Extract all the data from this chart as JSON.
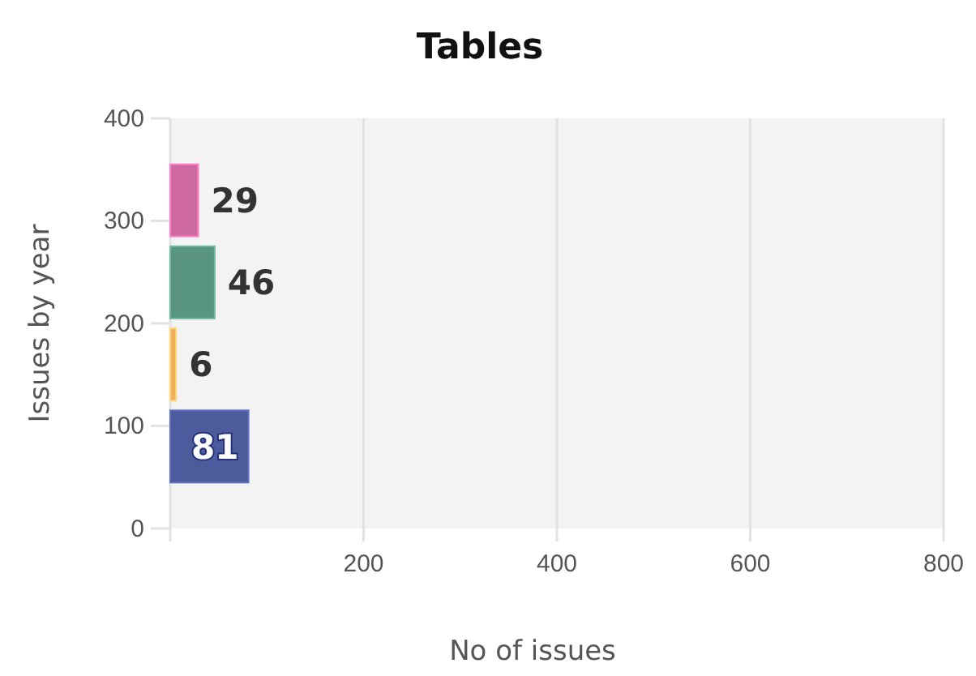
{
  "chart_data": {
    "type": "bar",
    "orientation": "horizontal",
    "title": "Tables",
    "xlabel": "No of issues",
    "ylabel": "Issues by year",
    "x": [
      80,
      160,
      240,
      320
    ],
    "values": [
      81,
      6,
      46,
      29
    ],
    "colors": [
      "#4c5b9b",
      "#f2ad5c",
      "#5a9580",
      "#cf69a2"
    ],
    "xlim": [
      0,
      800
    ],
    "xticks": [
      {
        "value": 0,
        "label": null
      },
      200,
      400,
      600,
      800
    ],
    "ylim": [
      0,
      400
    ],
    "yticks": [
      0,
      100,
      200,
      300,
      400
    ],
    "grid": "x",
    "data_labels": true
  }
}
